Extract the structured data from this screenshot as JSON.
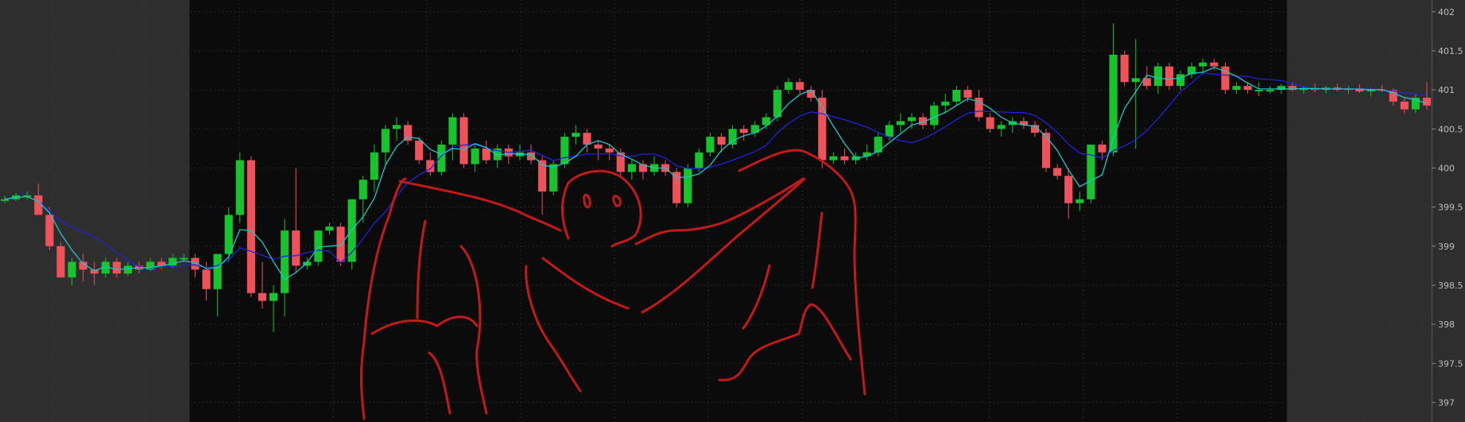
{
  "colors": {
    "background": "#0b0b0b",
    "extended_hours": "#2e2e2e",
    "grid": "#3a3a3a",
    "up": "#18c42e",
    "down": "#f0525c",
    "ma_fast": "#19c7c7",
    "ma_slow": "#2323d8",
    "drawing": "#c21a1a",
    "axis_text": "#bdbdbd"
  },
  "chart_data": {
    "type": "candlestick",
    "y_axis": {
      "min": 396.75,
      "max": 402.15,
      "ticks": [
        "402",
        "401.5",
        "401",
        "400.5",
        "400",
        "399.5",
        "399",
        "398.5",
        "398",
        "397.5",
        "397"
      ],
      "tick_values": [
        402,
        401.5,
        401,
        400.5,
        400,
        399.5,
        399,
        398.5,
        398,
        397.5,
        397
      ],
      "position": "right"
    },
    "grid": true,
    "sessions": [
      {
        "name": "pre-market",
        "shaded": true,
        "bars": [
          0,
          16
        ]
      },
      {
        "name": "regular",
        "shaded": false,
        "bars": [
          17,
          114
        ]
      },
      {
        "name": "after-hours",
        "shaded": true,
        "bars": [
          115,
          143
        ]
      }
    ],
    "series_ohlc": [
      [
        399.6,
        399.65,
        399.55,
        399.6
      ],
      [
        399.6,
        399.68,
        399.58,
        399.65
      ],
      [
        399.65,
        399.7,
        399.6,
        399.65
      ],
      [
        399.65,
        399.8,
        399.4,
        399.4
      ],
      [
        399.4,
        399.5,
        398.95,
        399.0
      ],
      [
        399.0,
        399.05,
        398.6,
        398.6
      ],
      [
        398.6,
        398.85,
        398.5,
        398.8
      ],
      [
        398.8,
        398.9,
        398.55,
        398.7
      ],
      [
        398.7,
        398.8,
        398.5,
        398.65
      ],
      [
        398.65,
        398.85,
        398.6,
        398.8
      ],
      [
        398.8,
        398.85,
        398.6,
        398.65
      ],
      [
        398.65,
        398.8,
        398.62,
        398.75
      ],
      [
        398.75,
        398.8,
        398.65,
        398.7
      ],
      [
        398.7,
        398.85,
        398.68,
        398.8
      ],
      [
        398.8,
        398.85,
        398.7,
        398.75
      ],
      [
        398.75,
        398.9,
        398.72,
        398.85
      ],
      [
        398.85,
        398.9,
        398.8,
        398.85
      ],
      [
        398.85,
        398.9,
        398.6,
        398.7
      ],
      [
        398.7,
        398.8,
        398.3,
        398.45
      ],
      [
        398.45,
        398.9,
        398.1,
        398.9
      ],
      [
        398.9,
        399.5,
        398.8,
        399.4
      ],
      [
        399.4,
        400.2,
        399.3,
        400.1
      ],
      [
        400.1,
        400.15,
        398.35,
        398.4
      ],
      [
        398.4,
        398.8,
        398.2,
        398.3
      ],
      [
        398.3,
        398.5,
        397.9,
        398.4
      ],
      [
        398.4,
        399.35,
        398.1,
        399.2
      ],
      [
        399.2,
        400.0,
        398.65,
        398.75
      ],
      [
        398.75,
        398.85,
        398.7,
        398.8
      ],
      [
        398.8,
        399.2,
        398.75,
        399.2
      ],
      [
        399.2,
        399.3,
        399.15,
        399.25
      ],
      [
        399.25,
        399.3,
        398.75,
        398.8
      ],
      [
        398.8,
        399.6,
        398.7,
        399.6
      ],
      [
        399.6,
        399.9,
        399.3,
        399.85
      ],
      [
        399.85,
        400.3,
        399.7,
        400.2
      ],
      [
        400.2,
        400.55,
        400.05,
        400.5
      ],
      [
        400.5,
        400.65,
        400.35,
        400.55
      ],
      [
        400.55,
        400.6,
        400.3,
        400.35
      ],
      [
        400.35,
        400.4,
        400.05,
        400.1
      ],
      [
        400.1,
        400.2,
        399.9,
        399.95
      ],
      [
        399.95,
        400.35,
        399.9,
        400.3
      ],
      [
        400.3,
        400.7,
        400.1,
        400.65
      ],
      [
        400.65,
        400.7,
        400.0,
        400.05
      ],
      [
        400.05,
        400.3,
        399.95,
        400.25
      ],
      [
        400.25,
        400.35,
        400.05,
        400.1
      ],
      [
        400.1,
        400.3,
        400.0,
        400.25
      ],
      [
        400.25,
        400.3,
        400.05,
        400.15
      ],
      [
        400.15,
        400.3,
        400.1,
        400.2
      ],
      [
        400.2,
        400.3,
        400.05,
        400.1
      ],
      [
        400.1,
        400.15,
        399.4,
        399.7
      ],
      [
        399.7,
        400.1,
        399.65,
        400.05
      ],
      [
        400.05,
        400.45,
        400.0,
        400.4
      ],
      [
        400.4,
        400.55,
        400.3,
        400.45
      ],
      [
        400.45,
        400.5,
        400.2,
        400.3
      ],
      [
        400.3,
        400.35,
        400.1,
        400.25
      ],
      [
        400.25,
        400.3,
        400.1,
        400.2
      ],
      [
        400.2,
        400.25,
        399.9,
        399.95
      ],
      [
        399.95,
        400.1,
        399.85,
        400.05
      ],
      [
        400.05,
        400.1,
        399.85,
        399.95
      ],
      [
        399.95,
        400.15,
        399.9,
        400.05
      ],
      [
        400.05,
        400.1,
        399.9,
        399.95
      ],
      [
        399.95,
        400.0,
        399.5,
        399.55
      ],
      [
        399.55,
        400.05,
        399.5,
        400.0
      ],
      [
        400.0,
        400.25,
        399.95,
        400.2
      ],
      [
        400.2,
        400.45,
        400.15,
        400.4
      ],
      [
        400.4,
        400.45,
        400.2,
        400.3
      ],
      [
        400.3,
        400.55,
        400.25,
        400.5
      ],
      [
        400.5,
        400.55,
        400.35,
        400.45
      ],
      [
        400.45,
        400.6,
        400.4,
        400.55
      ],
      [
        400.55,
        400.7,
        400.5,
        400.65
      ],
      [
        400.65,
        401.05,
        400.6,
        401.0
      ],
      [
        401.0,
        401.15,
        400.95,
        401.1
      ],
      [
        401.1,
        401.15,
        400.95,
        401.0
      ],
      [
        401.0,
        401.05,
        400.85,
        400.9
      ],
      [
        400.9,
        401.0,
        400.0,
        400.1
      ],
      [
        400.1,
        400.2,
        400.05,
        400.15
      ],
      [
        400.15,
        400.25,
        400.05,
        400.1
      ],
      [
        400.1,
        400.2,
        400.05,
        400.15
      ],
      [
        400.15,
        400.3,
        400.1,
        400.2
      ],
      [
        400.2,
        400.45,
        400.15,
        400.4
      ],
      [
        400.4,
        400.6,
        400.35,
        400.55
      ],
      [
        400.55,
        400.7,
        400.45,
        400.6
      ],
      [
        400.6,
        400.7,
        400.5,
        400.65
      ],
      [
        400.65,
        400.7,
        400.5,
        400.55
      ],
      [
        400.55,
        400.85,
        400.5,
        400.8
      ],
      [
        400.8,
        400.95,
        400.7,
        400.85
      ],
      [
        400.85,
        401.05,
        400.8,
        401.0
      ],
      [
        401.0,
        401.05,
        400.85,
        400.9
      ],
      [
        400.9,
        401.0,
        400.6,
        400.65
      ],
      [
        400.65,
        400.7,
        400.45,
        400.5
      ],
      [
        400.5,
        400.6,
        400.4,
        400.55
      ],
      [
        400.55,
        400.65,
        400.45,
        400.6
      ],
      [
        400.6,
        400.65,
        400.5,
        400.55
      ],
      [
        400.55,
        400.6,
        400.4,
        400.45
      ],
      [
        400.45,
        400.5,
        399.95,
        400.0
      ],
      [
        400.0,
        400.05,
        399.85,
        399.9
      ],
      [
        399.9,
        400.0,
        399.35,
        399.55
      ],
      [
        399.55,
        399.7,
        399.45,
        399.6
      ],
      [
        399.6,
        400.3,
        399.55,
        400.3
      ],
      [
        400.3,
        400.35,
        400.1,
        400.2
      ],
      [
        400.2,
        401.85,
        400.15,
        401.45
      ],
      [
        401.45,
        401.5,
        401.05,
        401.1
      ],
      [
        401.1,
        401.65,
        400.25,
        401.15
      ],
      [
        401.15,
        401.3,
        401.0,
        401.05
      ],
      [
        401.05,
        401.35,
        400.95,
        401.3
      ],
      [
        401.3,
        401.35,
        401.0,
        401.05
      ],
      [
        401.05,
        401.25,
        401.0,
        401.2
      ],
      [
        401.2,
        401.35,
        401.15,
        401.3
      ],
      [
        401.3,
        401.4,
        401.2,
        401.35
      ],
      [
        401.35,
        401.4,
        401.25,
        401.3
      ],
      [
        401.3,
        401.35,
        400.95,
        401.0
      ],
      [
        401.0,
        401.1,
        400.95,
        401.05
      ],
      [
        401.05,
        401.1,
        400.95,
        401.0
      ],
      [
        401.0,
        401.1,
        400.92,
        401.0
      ],
      [
        401.0,
        401.05,
        400.95,
        401.0
      ],
      [
        401.0,
        401.08,
        400.95,
        401.05
      ],
      [
        401.05,
        401.1,
        400.98,
        401.0
      ],
      [
        401.0,
        401.05,
        400.95,
        401.02
      ],
      [
        401.02,
        401.08,
        400.97,
        401.0
      ],
      [
        401.0,
        401.05,
        400.96,
        401.03
      ],
      [
        401.03,
        401.08,
        400.98,
        401.0
      ],
      [
        401.0,
        401.05,
        400.95,
        401.02
      ],
      [
        401.02,
        401.07,
        400.96,
        400.98
      ],
      [
        400.98,
        401.03,
        400.92,
        401.01
      ],
      [
        401.01,
        401.06,
        400.97,
        401.0
      ],
      [
        401.0,
        401.02,
        400.8,
        400.85
      ],
      [
        400.85,
        400.9,
        400.7,
        400.75
      ],
      [
        400.75,
        400.95,
        400.7,
        400.9
      ],
      [
        400.9,
        401.1,
        400.75,
        400.8
      ]
    ]
  }
}
